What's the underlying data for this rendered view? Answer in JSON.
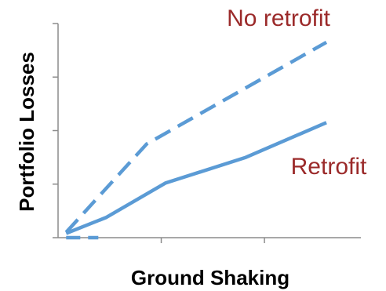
{
  "chart_data": {
    "type": "line",
    "title": "",
    "xlabel": "Ground Shaking",
    "ylabel": "Portfolio Losses",
    "xlim": [
      0,
      10
    ],
    "ylim": [
      0,
      4
    ],
    "x_tick_count": 2,
    "y_tick_count": 5,
    "grid": false,
    "legend": "none",
    "series": [
      {
        "style": "dashed",
        "color": "#5b9bd5",
        "x": [
          0.3,
          3.3,
          10
        ],
        "y": [
          0.1,
          1.75,
          3.65
        ]
      },
      {
        "style": "solid",
        "color": "#5b9bd5",
        "x": [
          0.3,
          1.8,
          4.0,
          7.0,
          10
        ],
        "y": [
          0.08,
          0.38,
          1.02,
          1.5,
          2.15
        ]
      }
    ],
    "annotations": [
      {
        "text": "No retrofit",
        "color": "#9b2a2a",
        "anchor_series": 0
      },
      {
        "text": "Retrofit",
        "color": "#9b2a2a",
        "anchor_series": 1
      }
    ],
    "extra_marks": [
      {
        "style": "dashed",
        "x": [
          0.3,
          1.5
        ],
        "y": [
          0.0,
          0.0
        ]
      }
    ]
  }
}
